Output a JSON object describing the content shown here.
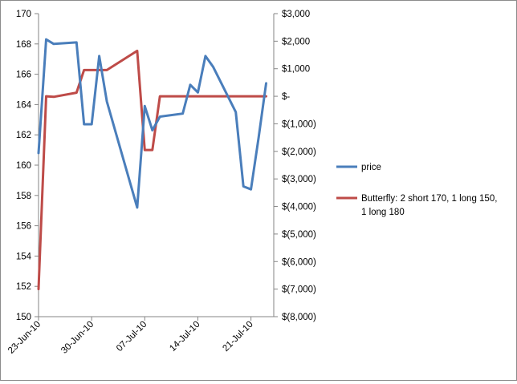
{
  "chart_data": {
    "type": "line",
    "title": "",
    "xlabel": "",
    "ylabel": "",
    "x_tick_labels": [
      "23-Jun-10",
      "30-Jun-10",
      "07-Jul-10",
      "14-Jul-10",
      "21-Jul-10"
    ],
    "x_tick_days": [
      0,
      7,
      14,
      21,
      28
    ],
    "xlim_days": [
      0,
      31
    ],
    "y_left": {
      "ylim": [
        150,
        170
      ],
      "ticks": [
        150,
        152,
        154,
        156,
        158,
        160,
        162,
        164,
        166,
        168,
        170
      ],
      "tick_labels": [
        "150",
        "152",
        "154",
        "156",
        "158",
        "160",
        "162",
        "164",
        "166",
        "168",
        "170"
      ]
    },
    "y_right": {
      "ylim": [
        -8000,
        3000
      ],
      "ticks": [
        -8000,
        -7000,
        -6000,
        -5000,
        -4000,
        -3000,
        -2000,
        -1000,
        0,
        1000,
        2000,
        3000
      ],
      "tick_labels": [
        "$(8,000)",
        "$(7,000)",
        "$(6,000)",
        "$(5,000)",
        "$(4,000)",
        "$(3,000)",
        "$(2,000)",
        "$(1,000)",
        "$-",
        "$1,000",
        "$2,000",
        "$3,000"
      ]
    },
    "grid": false,
    "legend_position": "right",
    "series": [
      {
        "name": "price",
        "axis": "left",
        "color": "#4a7ebb",
        "x": [
          "23-Jun-10",
          "24-Jun-10",
          "25-Jun-10",
          "28-Jun-10",
          "29-Jun-10",
          "30-Jun-10",
          "01-Jul-10",
          "02-Jul-10",
          "06-Jul-10",
          "07-Jul-10",
          "08-Jul-10",
          "09-Jul-10",
          "12-Jul-10",
          "13-Jul-10",
          "14-Jul-10",
          "15-Jul-10",
          "16-Jul-10",
          "19-Jul-10",
          "20-Jul-10",
          "21-Jul-10",
          "22-Jul-10",
          "23-Jul-10"
        ],
        "x_days": [
          0,
          1,
          2,
          5,
          6,
          7,
          8,
          9,
          13,
          14,
          15,
          16,
          19,
          20,
          21,
          22,
          23,
          26,
          27,
          28,
          29,
          30
        ],
        "values": [
          160.8,
          168.3,
          168.0,
          168.1,
          162.7,
          162.7,
          167.2,
          164.2,
          157.2,
          163.9,
          162.3,
          163.2,
          163.4,
          165.3,
          164.8,
          167.2,
          166.5,
          163.5,
          158.6,
          158.4,
          161.8,
          165.4
        ]
      },
      {
        "name": "Butterfly: 2 short 170, 1 long 150, 1 long 180",
        "axis": "right",
        "color": "#be4b48",
        "x": [
          "23-Jun-10",
          "24-Jun-10",
          "25-Jun-10",
          "28-Jun-10",
          "29-Jun-10",
          "01-Jul-10",
          "02-Jul-10",
          "06-Jul-10",
          "07-Jul-10",
          "08-Jul-10",
          "09-Jul-10",
          "12-Jul-10",
          "16-Jul-10",
          "20-Jul-10",
          "23-Jul-10"
        ],
        "x_days": [
          0,
          1,
          2,
          5,
          6,
          8,
          9,
          13,
          14,
          15,
          16,
          19,
          23,
          27,
          30
        ],
        "values": [
          -7000,
          0,
          -20,
          130,
          950,
          950,
          950,
          1650,
          -1950,
          -1950,
          0,
          0,
          0,
          0,
          0
        ]
      }
    ],
    "legend": [
      {
        "label": "price",
        "color": "#4a7ebb"
      },
      {
        "label": "Butterfly: 2 short 170, 1 long 150,",
        "label2": "1 long 180",
        "color": "#be4b48"
      }
    ]
  }
}
